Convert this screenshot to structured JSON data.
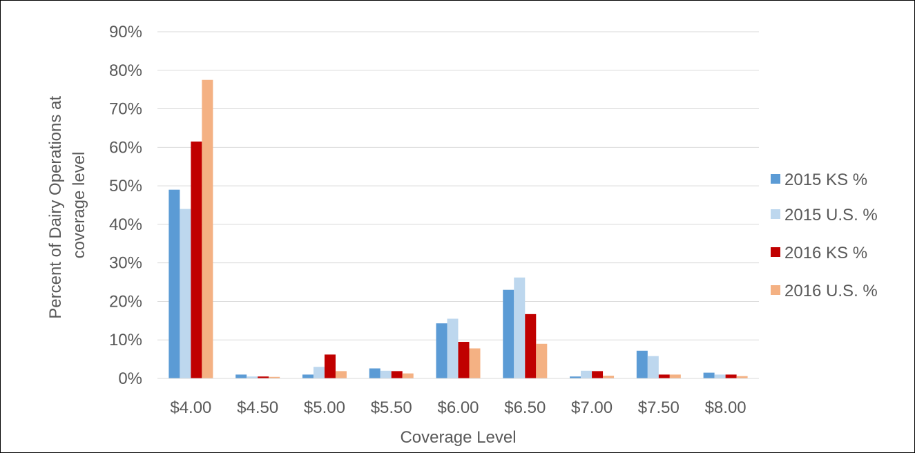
{
  "chart_data": {
    "type": "bar",
    "title": "",
    "xlabel": "Coverage Level",
    "ylabel_lines": [
      "Percent of Dairy Operations at",
      "coverage level"
    ],
    "ylim": [
      0,
      90
    ],
    "y_ticks": [
      0,
      10,
      20,
      30,
      40,
      50,
      60,
      70,
      80,
      90
    ],
    "y_tick_labels": [
      "0%",
      "10%",
      "20%",
      "30%",
      "40%",
      "50%",
      "60%",
      "70%",
      "80%",
      "90%"
    ],
    "grid": true,
    "legend_position": "right",
    "categories": [
      "$4.00",
      "$4.50",
      "$5.00",
      "$5.50",
      "$6.00",
      "$6.50",
      "$7.00",
      "$7.50",
      "$8.00"
    ],
    "series": [
      {
        "name": "2015 KS %",
        "color": "#5B9BD5",
        "values": [
          49.0,
          1.0,
          1.0,
          2.6,
          14.3,
          23.0,
          0.5,
          7.2,
          1.5
        ]
      },
      {
        "name": "2015 U.S. %",
        "color": "#BDD7EE",
        "values": [
          44.0,
          0.5,
          3.0,
          2.0,
          15.5,
          26.2,
          2.0,
          5.8,
          1.0
        ]
      },
      {
        "name": "2016 KS %",
        "color": "#C00000",
        "values": [
          61.5,
          0.5,
          6.2,
          1.9,
          9.5,
          16.7,
          1.9,
          1.0,
          1.0
        ]
      },
      {
        "name": "2016 U.S. %",
        "color": "#F4B183",
        "values": [
          77.5,
          0.4,
          1.9,
          1.3,
          7.8,
          9.0,
          0.7,
          1.0,
          0.6
        ]
      }
    ]
  }
}
